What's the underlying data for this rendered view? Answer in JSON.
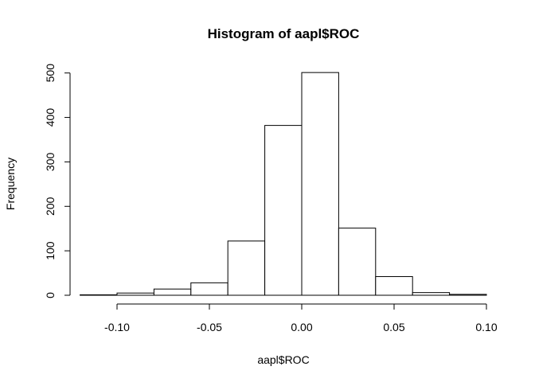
{
  "chart_data": {
    "type": "bar",
    "subtype": "histogram",
    "title": "Histogram of aapl$ROC",
    "xlabel": "aapl$ROC",
    "ylabel": "Frequency",
    "bins": [
      {
        "x0": -0.12,
        "x1": -0.1,
        "count": 1
      },
      {
        "x0": -0.1,
        "x1": -0.08,
        "count": 5
      },
      {
        "x0": -0.08,
        "x1": -0.06,
        "count": 14
      },
      {
        "x0": -0.06,
        "x1": -0.04,
        "count": 28
      },
      {
        "x0": -0.04,
        "x1": -0.02,
        "count": 122
      },
      {
        "x0": -0.02,
        "x1": 0.0,
        "count": 382
      },
      {
        "x0": 0.0,
        "x1": 0.02,
        "count": 501
      },
      {
        "x0": 0.02,
        "x1": 0.04,
        "count": 151
      },
      {
        "x0": 0.04,
        "x1": 0.06,
        "count": 42
      },
      {
        "x0": 0.06,
        "x1": 0.08,
        "count": 6
      },
      {
        "x0": 0.08,
        "x1": 0.1,
        "count": 2
      }
    ],
    "xticks": [
      -0.1,
      -0.05,
      0.0,
      0.05,
      0.1
    ],
    "xtick_labels": [
      "-0.10",
      "-0.05",
      "0.00",
      "0.05",
      "0.10"
    ],
    "yticks": [
      0,
      100,
      200,
      300,
      400,
      500
    ],
    "ytick_labels": [
      "0",
      "100",
      "200",
      "300",
      "400",
      "500"
    ],
    "xlim": [
      -0.12,
      0.1
    ],
    "ylim": [
      0,
      500
    ],
    "grid": false,
    "colors": {
      "bar_fill": "#ffffff",
      "bar_stroke": "#000000"
    }
  }
}
